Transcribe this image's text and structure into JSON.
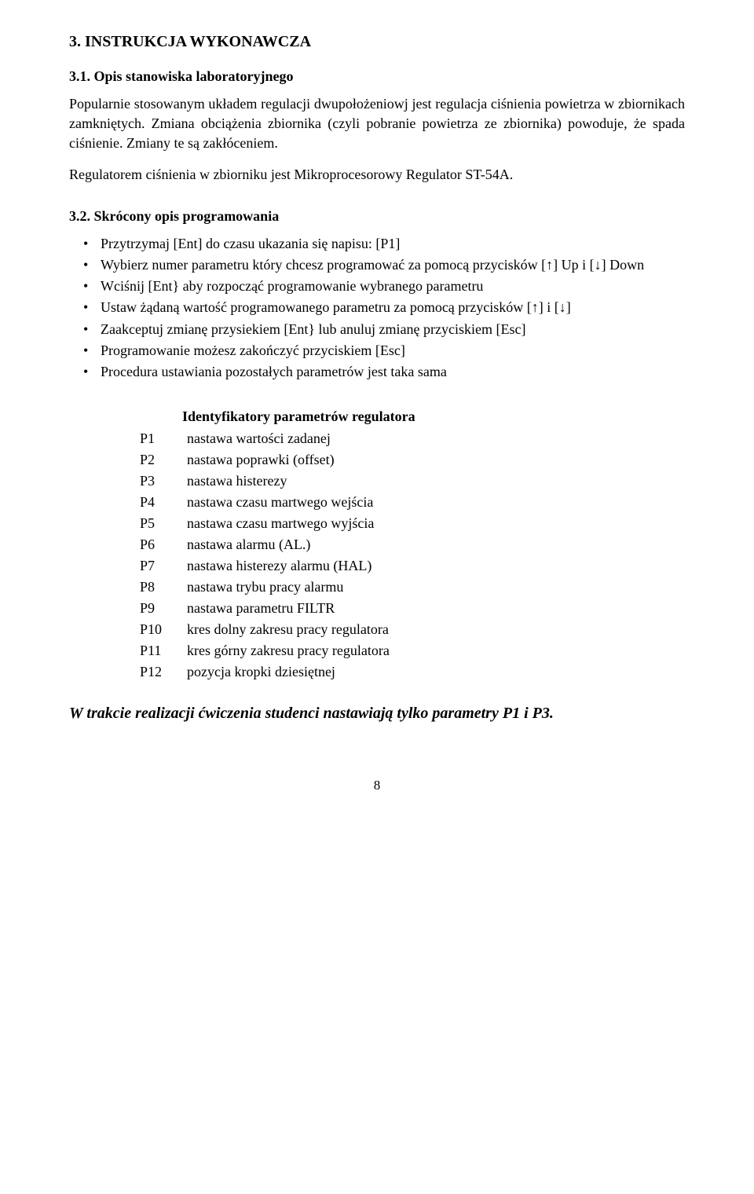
{
  "section3": {
    "heading": "3.  INSTRUKCJA WYKONAWCZA",
    "sub31": {
      "heading": "3.1. Opis stanowiska laboratoryjnego",
      "p1": "Popularnie stosowanym układem regulacji dwupołożeniowj jest regulacja ciśnienia powietrza w zbiornikach zamkniętych. Zmiana obciążenia zbiornika (czyli pobranie powietrza ze zbiornika) powoduje, że spada ciśnienie. Zmiany te są zakłóceniem.",
      "p2": "Regulatorem ciśnienia w zbiorniku jest Mikroprocesorowy Regulator ST-54A."
    },
    "sub32": {
      "heading": "3.2. Skrócony opis programowania",
      "items": [
        "Przytrzymaj [Ent] do czasu ukazania się napisu: [P1]",
        "Wybierz numer parametru który chcesz programować za pomocą przycisków [↑] Up i [↓] Down",
        "Wciśnij [Ent} aby rozpocząć programowanie wybranego parametru",
        "Ustaw żądaną wartość programowanego parametru za pomocą przycisków [↑] i [↓]",
        "Zaakceptuj zmianę przysiekiem [Ent} lub anuluj zmianę przyciskiem [Esc]",
        "Programowanie możesz zakończyć przyciskiem [Esc]",
        "Procedura ustawiania pozostałych parametrów jest taka sama"
      ]
    }
  },
  "paramTable": {
    "title": "Identyfikatory parametrów regulatora",
    "rows": [
      {
        "code": "P1",
        "desc": "nastawa wartości zadanej"
      },
      {
        "code": "P2",
        "desc": "nastawa poprawki (offset)"
      },
      {
        "code": "P3",
        "desc": "nastawa histerezy"
      },
      {
        "code": "P4",
        "desc": "nastawa czasu martwego wejścia"
      },
      {
        "code": "P5",
        "desc": "nastawa czasu martwego wyjścia"
      },
      {
        "code": "P6",
        "desc": "nastawa alarmu (AL.)"
      },
      {
        "code": "P7",
        "desc": "nastawa histerezy alarmu (HAL)"
      },
      {
        "code": "P8",
        "desc": "nastawa trybu pracy alarmu"
      },
      {
        "code": "P9",
        "desc": "nastawa parametru FILTR"
      },
      {
        "code": "P10",
        "desc": "kres dolny zakresu pracy regulatora"
      },
      {
        "code": "P11",
        "desc": "kres górny zakresu pracy regulatora"
      },
      {
        "code": "P12",
        "desc": "pozycja kropki dziesiętnej"
      }
    ]
  },
  "closingNote": "W trakcie realizacji ćwiczenia studenci nastawiają tylko parametry P1 i P3.",
  "pageNumber": "8"
}
